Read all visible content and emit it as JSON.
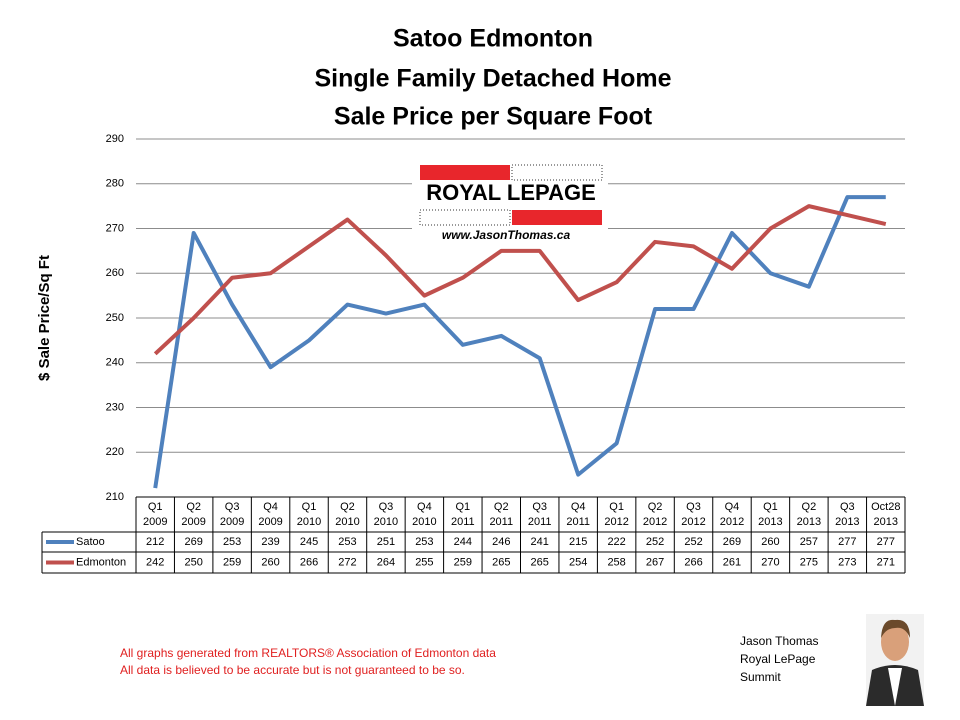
{
  "chart_data": {
    "type": "line",
    "title": [
      "Satoo Edmonton",
      "Single Family Detached Home",
      "Sale Price per Square Foot"
    ],
    "ylabel": "$ Sale Price/Sq Ft",
    "categories": [
      "Q1 2009",
      "Q2 2009",
      "Q3 2009",
      "Q4 2009",
      "Q1 2010",
      "Q2 2010",
      "Q3 2010",
      "Q4 2010",
      "Q1 2011",
      "Q2 2011",
      "Q3 2011",
      "Q4 2011",
      "Q1 2012",
      "Q2 2012",
      "Q3 2012",
      "Q4 2012",
      "Q1 2013",
      "Q2 2013",
      "Q3 2013",
      "Oct28 2013"
    ],
    "series": [
      {
        "name": "Satoo",
        "color": "#4f81bd",
        "values": [
          212,
          269,
          253,
          239,
          245,
          253,
          251,
          253,
          244,
          246,
          241,
          215,
          222,
          252,
          252,
          269,
          260,
          257,
          277,
          277
        ]
      },
      {
        "name": "Edmonton",
        "color": "#c0504d",
        "values": [
          242,
          250,
          259,
          260,
          266,
          272,
          264,
          255,
          259,
          265,
          265,
          254,
          258,
          267,
          266,
          261,
          270,
          275,
          273,
          271
        ]
      }
    ],
    "ylim": [
      210,
      290
    ],
    "yticks": [
      210,
      220,
      230,
      240,
      250,
      260,
      270,
      280,
      290
    ],
    "grid": true
  },
  "logo": {
    "brand": "ROYAL LEPAGE",
    "url": "www.JasonThomas.ca"
  },
  "footer": [
    "All graphs generated from REALTORS® Association of Edmonton data",
    "All data is believed to be accurate but is not guaranteed to be so."
  ],
  "agent": [
    "Jason Thomas",
    "Royal LePage",
    "Summit"
  ]
}
